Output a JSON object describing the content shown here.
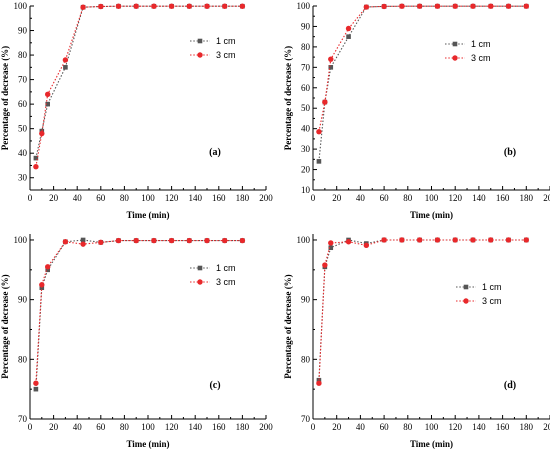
{
  "chart_data": [
    {
      "type": "line",
      "panel_label": "(a)",
      "xlabel": "Time (min)",
      "ylabel": "Percentage of decrease (%)",
      "xlim": [
        0,
        200
      ],
      "ylim": [
        25,
        100
      ],
      "xticks": [
        0,
        20,
        40,
        60,
        80,
        100,
        120,
        140,
        160,
        180,
        200
      ],
      "yticks": [
        30,
        40,
        50,
        60,
        70,
        80,
        90,
        100
      ],
      "legend_position": "top-right",
      "series": [
        {
          "name": "1 cm",
          "color": "#555555",
          "marker": "square",
          "x": [
            5,
            10,
            15,
            30,
            45,
            60,
            75,
            90,
            105,
            120,
            135,
            150,
            165,
            180
          ],
          "y": [
            38,
            49,
            60,
            75,
            99.5,
            99.8,
            99.9,
            99.9,
            99.9,
            99.9,
            99.9,
            99.9,
            99.9,
            99.9
          ]
        },
        {
          "name": "3 cm",
          "color": "#e8282b",
          "marker": "circle",
          "x": [
            5,
            10,
            15,
            30,
            45,
            60,
            75,
            90,
            105,
            120,
            135,
            150,
            165,
            180
          ],
          "y": [
            34.5,
            48,
            64,
            78,
            99.5,
            99.8,
            99.9,
            99.9,
            99.9,
            99.9,
            99.9,
            99.9,
            99.9,
            99.9
          ]
        }
      ]
    },
    {
      "type": "line",
      "panel_label": "(b)",
      "xlabel": "Time (min)",
      "ylabel": "Percentage of decrease (%)",
      "xlim": [
        0,
        200
      ],
      "ylim": [
        10,
        100
      ],
      "xticks": [
        0,
        20,
        40,
        60,
        80,
        100,
        120,
        140,
        160,
        180,
        200
      ],
      "yticks": [
        10,
        20,
        30,
        40,
        50,
        60,
        70,
        80,
        90,
        100
      ],
      "legend_position": "top-right",
      "series": [
        {
          "name": "1 cm",
          "color": "#555555",
          "marker": "square",
          "x": [
            5,
            10,
            15,
            30,
            45,
            60,
            75,
            90,
            105,
            120,
            135,
            150,
            165,
            180
          ],
          "y": [
            24,
            53,
            70,
            85,
            99.5,
            99.8,
            99.9,
            99.9,
            99.9,
            99.9,
            99.9,
            99.9,
            99.9,
            99.9
          ]
        },
        {
          "name": "3 cm",
          "color": "#e8282b",
          "marker": "circle",
          "x": [
            5,
            10,
            15,
            30,
            45,
            60,
            75,
            90,
            105,
            120,
            135,
            150,
            165,
            180
          ],
          "y": [
            38.5,
            53,
            74,
            89,
            99.5,
            99.8,
            99.9,
            99.9,
            99.9,
            99.9,
            99.9,
            99.9,
            99.9,
            99.9
          ]
        }
      ]
    },
    {
      "type": "line",
      "panel_label": "(c)",
      "xlabel": "Time (min)",
      "ylabel": "Percentage of decrease (%)",
      "xlim": [
        0,
        200
      ],
      "ylim": [
        70,
        101
      ],
      "xticks": [
        0,
        20,
        40,
        60,
        80,
        100,
        120,
        140,
        160,
        180,
        200
      ],
      "yticks": [
        70,
        80,
        90,
        100
      ],
      "legend_position": "top-right",
      "series": [
        {
          "name": "1 cm",
          "color": "#555555",
          "marker": "square",
          "x": [
            5,
            10,
            15,
            30,
            45,
            60,
            75,
            90,
            105,
            120,
            135,
            150,
            165,
            180
          ],
          "y": [
            75,
            92,
            95,
            99.7,
            100,
            99.6,
            99.9,
            99.9,
            99.9,
            99.9,
            99.9,
            99.9,
            99.9,
            99.9
          ]
        },
        {
          "name": "3 cm",
          "color": "#e8282b",
          "marker": "circle",
          "x": [
            5,
            10,
            15,
            30,
            45,
            60,
            75,
            90,
            105,
            120,
            135,
            150,
            165,
            180
          ],
          "y": [
            76,
            92.5,
            95.5,
            99.7,
            99.3,
            99.6,
            99.9,
            99.9,
            99.9,
            99.9,
            99.9,
            99.9,
            99.9,
            99.9
          ]
        }
      ]
    },
    {
      "type": "line",
      "panel_label": "(d)",
      "xlabel": "Time (min)",
      "ylabel": "Percentage of decrease (%)",
      "xlim": [
        0,
        200
      ],
      "ylim": [
        70,
        101
      ],
      "xticks": [
        0,
        20,
        40,
        60,
        80,
        100,
        120,
        140,
        160,
        180,
        200
      ],
      "yticks": [
        70,
        80,
        90,
        100
      ],
      "legend_position": "top-right",
      "series": [
        {
          "name": "1 cm",
          "color": "#555555",
          "marker": "square",
          "x": [
            5,
            10,
            15,
            30,
            45,
            60,
            75,
            90,
            105,
            120,
            135,
            150,
            165,
            180
          ],
          "y": [
            76.5,
            95.5,
            98.7,
            100,
            99.4,
            100,
            100,
            100,
            100,
            100,
            100,
            100,
            100,
            100
          ]
        },
        {
          "name": "3 cm",
          "color": "#e8282b",
          "marker": "circle",
          "x": [
            5,
            10,
            15,
            30,
            45,
            60,
            75,
            90,
            105,
            120,
            135,
            150,
            165,
            180
          ],
          "y": [
            76,
            95.8,
            99.5,
            99.7,
            99.1,
            100,
            100,
            100,
            100,
            100,
            100,
            100,
            100,
            100
          ]
        }
      ]
    }
  ]
}
